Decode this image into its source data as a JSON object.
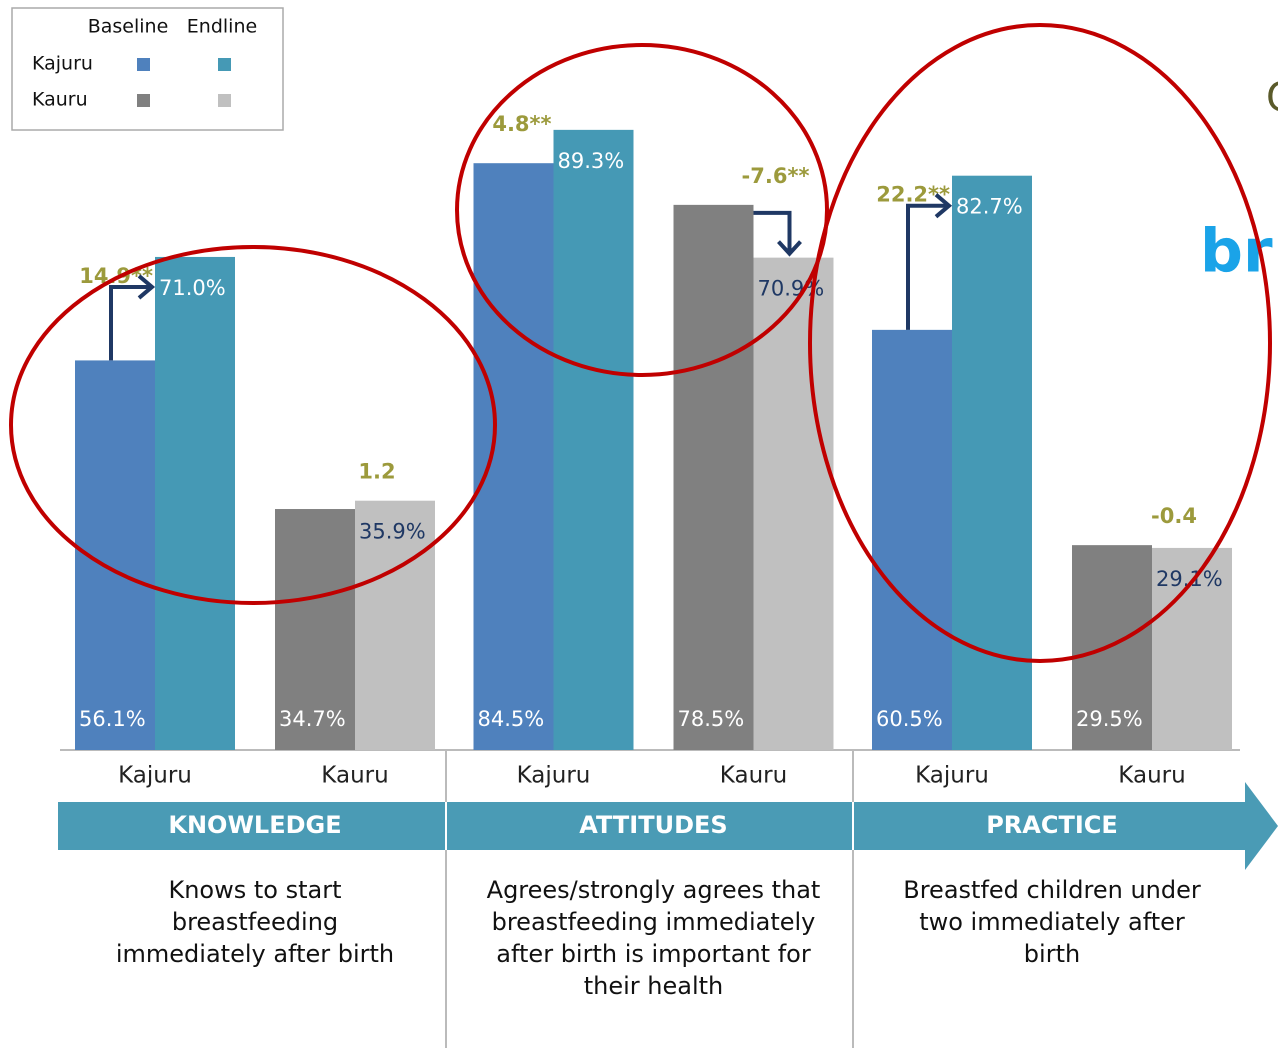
{
  "chart_data": {
    "type": "bar",
    "groups": [
      "KNOWLEDGE",
      "ATTITUDES",
      "PRACTICE"
    ],
    "group_descriptions": [
      [
        "Knows to start",
        "breastfeeding",
        "immediately after birth"
      ],
      [
        "Agrees/strongly agrees that",
        "breastfeeding immediately",
        "after birth is important for",
        "their health"
      ],
      [
        "Breastfed children under",
        "two immediately after",
        "birth"
      ]
    ],
    "sites": [
      "Kajuru",
      "Kauru"
    ],
    "periods": [
      "Baseline",
      "Endline"
    ],
    "colors": [
      [
        "#4f81bd",
        "#4599b5"
      ],
      [
        "#808080",
        "#c0c0c0"
      ]
    ],
    "values": [
      [
        [
          56.1,
          71.0
        ],
        [
          34.7,
          35.9
        ]
      ],
      [
        [
          84.5,
          89.3
        ],
        [
          78.5,
          70.9
        ]
      ],
      [
        [
          60.5,
          82.7
        ],
        [
          29.5,
          29.1
        ]
      ]
    ],
    "value_labels": [
      [
        [
          "56.1%",
          "71.0%"
        ],
        [
          "34.7%",
          "35.9%"
        ]
      ],
      [
        [
          "84.5%",
          "89.3%"
        ],
        [
          "78.5%",
          "70.9%"
        ]
      ],
      [
        [
          "60.5%",
          "82.7%"
        ],
        [
          "29.5%",
          "29.1%"
        ]
      ]
    ],
    "changes": [
      [
        {
          "value": 14.9,
          "label": "14.9**"
        },
        1.2
      ],
      [
        {
          "value": 4.8,
          "label": "4.8**"
        },
        {
          "value": -7.6,
          "label": "-7.6**"
        }
      ],
      [
        {
          "value": 22.2,
          "label": "22.2**"
        },
        -0.4
      ]
    ],
    "ylim": [
      0,
      108
    ],
    "fragments": [
      "br",
      "C"
    ]
  }
}
